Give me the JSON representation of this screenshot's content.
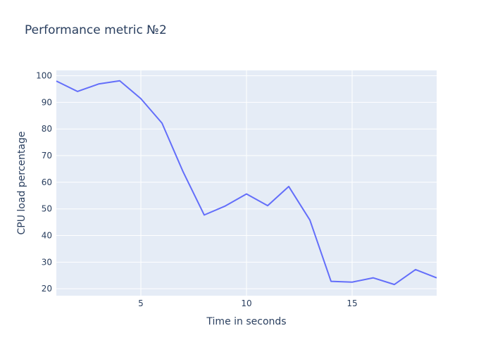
{
  "chart_data": {
    "type": "line",
    "title": "Performance metric №2",
    "xlabel": "Time in seconds",
    "ylabel": "CPU load percentage",
    "x": [
      1,
      2,
      3,
      4,
      5,
      6,
      7,
      8,
      9,
      10,
      11,
      12,
      13,
      14,
      15,
      16,
      17,
      18,
      19
    ],
    "series": [
      {
        "values": [
          98,
          94.1,
          96.9,
          98.1,
          91.4,
          82.2,
          63.9,
          47.7,
          51.1,
          55.6,
          51.2,
          58.4,
          45.8,
          22.8,
          22.5,
          24.1,
          21.6,
          27.2,
          24.1
        ]
      }
    ],
    "xlim": [
      1,
      19
    ],
    "ylim": [
      17.4,
      102
    ],
    "xticks": [
      "5",
      "10",
      "15"
    ],
    "yticks": [
      "20",
      "30",
      "40",
      "50",
      "60",
      "70",
      "80",
      "90",
      "100"
    ],
    "grid": true,
    "line_color": "#636efa",
    "plot_bg": "#e5ecf6"
  }
}
